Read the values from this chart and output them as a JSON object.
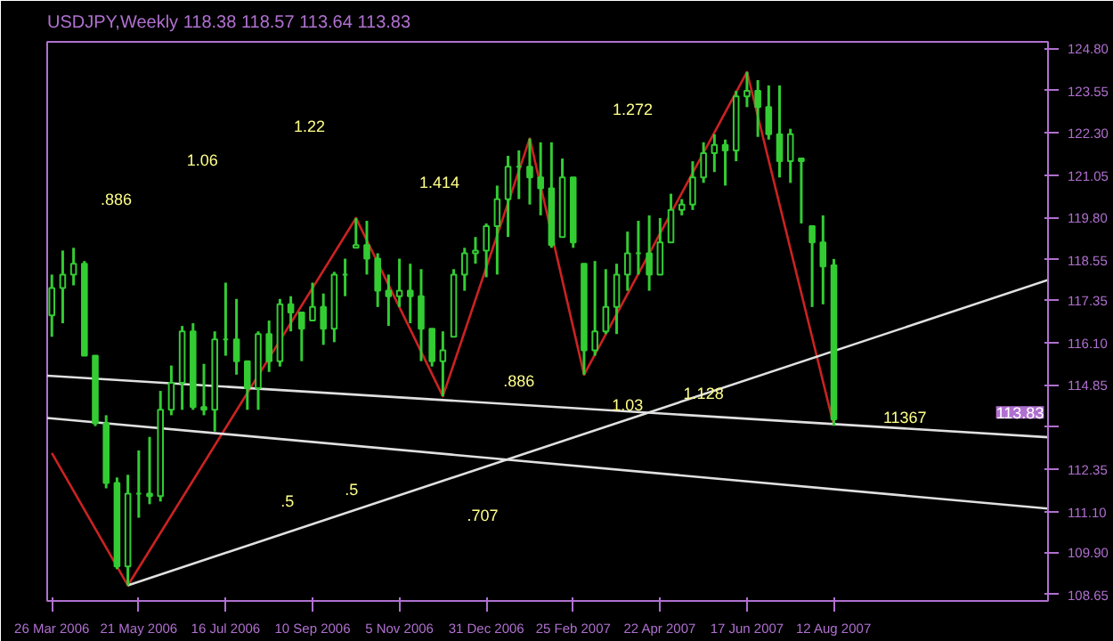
{
  "chart_data": {
    "type": "candlestick",
    "title": "USDJPY,Weekly  118.38 118.57 113.64 113.83",
    "color": "#33cc33",
    "x": [
      "2006-03-26",
      "2006-04-02",
      "2006-04-09",
      "2006-04-16",
      "2006-04-23",
      "2006-04-30",
      "2006-05-07",
      "2006-05-14",
      "2006-05-21",
      "2006-05-28",
      "2006-06-04",
      "2006-06-11",
      "2006-06-18",
      "2006-06-25",
      "2006-07-02",
      "2006-07-09",
      "2006-07-16",
      "2006-07-23",
      "2006-07-30",
      "2006-08-06",
      "2006-08-13",
      "2006-08-20",
      "2006-08-27",
      "2006-09-03",
      "2006-09-10",
      "2006-09-17",
      "2006-09-24",
      "2006-10-01",
      "2006-10-08",
      "2006-10-15",
      "2006-10-22",
      "2006-10-29",
      "2006-11-05",
      "2006-11-12",
      "2006-11-19",
      "2006-11-26",
      "2006-12-03",
      "2006-12-10",
      "2006-12-17",
      "2006-12-24",
      "2006-12-31",
      "2007-01-07",
      "2007-01-14",
      "2007-01-21",
      "2007-01-28",
      "2007-02-04",
      "2007-02-11",
      "2007-02-18",
      "2007-02-25",
      "2007-03-04",
      "2007-03-11",
      "2007-03-18",
      "2007-03-25",
      "2007-04-01",
      "2007-04-08",
      "2007-04-15",
      "2007-04-22",
      "2007-04-29",
      "2007-05-06",
      "2007-05-13",
      "2007-05-20",
      "2007-05-27",
      "2007-06-03",
      "2007-06-10",
      "2007-06-17",
      "2007-06-24",
      "2007-07-01",
      "2007-07-08",
      "2007-07-15",
      "2007-07-22",
      "2007-07-29",
      "2007-08-05",
      "2007-08-12"
    ],
    "ohlc": [
      [
        116.9,
        118.11,
        116.27,
        117.71
      ],
      [
        117.71,
        118.82,
        116.67,
        118.11
      ],
      [
        118.11,
        118.9,
        117.79,
        118.43
      ],
      [
        118.43,
        118.51,
        115.71,
        115.71
      ],
      [
        115.71,
        115.71,
        113.63,
        113.71
      ],
      [
        113.71,
        113.95,
        111.79,
        111.95
      ],
      [
        111.95,
        112.11,
        109.4,
        109.48
      ],
      [
        109.48,
        112.19,
        108.92,
        111.63
      ],
      [
        111.63,
        112.91,
        110.92,
        111.63
      ],
      [
        111.63,
        113.31,
        111.32,
        111.56
      ],
      [
        111.56,
        114.67,
        111.4,
        114.11
      ],
      [
        114.11,
        115.42,
        113.95,
        114.91
      ],
      [
        114.91,
        116.59,
        114.11,
        116.43
      ],
      [
        116.43,
        116.67,
        114.11,
        114.19
      ],
      [
        114.19,
        115.47,
        113.95,
        114.11
      ],
      [
        114.11,
        116.43,
        113.47,
        116.19
      ],
      [
        116.19,
        117.87,
        115.71,
        116.19
      ],
      [
        116.19,
        117.39,
        115.15,
        115.55
      ],
      [
        115.55,
        115.55,
        114.11,
        114.75
      ],
      [
        114.75,
        116.43,
        114.11,
        116.35
      ],
      [
        116.35,
        116.75,
        115.23,
        115.55
      ],
      [
        115.55,
        117.39,
        115.39,
        117.23
      ],
      [
        117.23,
        117.47,
        116.43,
        116.99
      ],
      [
        116.99,
        116.99,
        115.55,
        116.51
      ],
      [
        116.75,
        117.87,
        116.75,
        117.15
      ],
      [
        117.15,
        117.55,
        116.03,
        116.51
      ],
      [
        116.51,
        118.19,
        116.11,
        118.11
      ],
      [
        118.11,
        118.58,
        117.47,
        118.11
      ],
      [
        118.9,
        119.78,
        118.9,
        118.98
      ],
      [
        118.98,
        119.7,
        118.11,
        118.58
      ],
      [
        118.58,
        118.74,
        117.15,
        117.63
      ],
      [
        117.63,
        118.11,
        116.59,
        117.47
      ],
      [
        117.47,
        118.58,
        117.15,
        117.63
      ],
      [
        117.63,
        118.43,
        116.67,
        117.47
      ],
      [
        117.47,
        118.27,
        115.55,
        116.51
      ],
      [
        116.51,
        116.51,
        115.39,
        115.55
      ],
      [
        115.55,
        116.43,
        114.51,
        115.87
      ],
      [
        116.27,
        118.27,
        116.27,
        118.11
      ],
      [
        118.11,
        118.9,
        117.63,
        118.74
      ],
      [
        118.74,
        119.22,
        118.43,
        118.82
      ],
      [
        118.82,
        119.62,
        118.03,
        119.54
      ],
      [
        119.54,
        120.74,
        118.11,
        120.34
      ],
      [
        120.34,
        121.62,
        119.22,
        121.3
      ],
      [
        121.3,
        121.78,
        120.34,
        121.3
      ],
      [
        121.3,
        122.13,
        120.18,
        120.98
      ],
      [
        120.98,
        122.02,
        119.86,
        120.66
      ],
      [
        120.66,
        122.02,
        118.9,
        118.98
      ],
      [
        119.22,
        121.54,
        119.22,
        120.98
      ],
      [
        120.98,
        120.98,
        118.9,
        119.06
      ],
      [
        118.43,
        118.43,
        115.15,
        115.87
      ],
      [
        115.87,
        118.51,
        115.71,
        116.43
      ],
      [
        116.43,
        118.27,
        116.35,
        117.15
      ],
      [
        117.15,
        118.43,
        116.35,
        118.11
      ],
      [
        118.11,
        119.38,
        117.63,
        118.74
      ],
      [
        118.74,
        119.7,
        118.11,
        118.74
      ],
      [
        118.74,
        119.86,
        117.63,
        118.11
      ],
      [
        118.11,
        119.78,
        118.11,
        119.06
      ],
      [
        119.06,
        120.5,
        119.06,
        120.02
      ],
      [
        120.02,
        120.34,
        119.86,
        120.18
      ],
      [
        120.18,
        121.46,
        120.02,
        120.98
      ],
      [
        120.98,
        122.02,
        120.82,
        121.7
      ],
      [
        121.7,
        122.26,
        121.14,
        121.94
      ],
      [
        121.94,
        122.1,
        120.74,
        121.78
      ],
      [
        121.78,
        123.54,
        121.46,
        123.38
      ],
      [
        123.38,
        124.1,
        123.06,
        123.54
      ],
      [
        123.54,
        123.86,
        122.18,
        123.06
      ],
      [
        123.06,
        123.7,
        122.1,
        122.26
      ],
      [
        122.26,
        123.7,
        120.98,
        121.46
      ],
      [
        121.46,
        122.42,
        120.82,
        122.26
      ],
      [
        121.54,
        121.54,
        119.62,
        121.46
      ],
      [
        119.54,
        119.54,
        117.15,
        119.06
      ],
      [
        119.06,
        119.86,
        117.23,
        118.35
      ],
      [
        118.38,
        118.57,
        113.64,
        113.83
      ]
    ],
    "series": [
      {
        "type": "line",
        "color": "#cc2222",
        "x": [
          "2006-03-26",
          "2006-05-14",
          "2006-10-08",
          "2006-12-03",
          "2007-01-28",
          "2007-03-04",
          "2007-06-17",
          "2007-08-12"
        ],
        "values": [
          112.83,
          108.92,
          119.78,
          114.51,
          122.13,
          115.15,
          124.1,
          113.64
        ]
      },
      {
        "type": "line",
        "color": "#e0e0e0",
        "x": [
          "2006-03-23",
          "2007-12-28"
        ],
        "values": [
          115.12,
          113.3
        ]
      },
      {
        "type": "line",
        "color": "#e0e0e0",
        "x": [
          "2006-03-23",
          "2007-12-28"
        ],
        "values": [
          113.87,
          111.19
        ]
      },
      {
        "type": "line",
        "color": "#e0e0e0",
        "x": [
          "2006-05-14",
          "2007-12-28"
        ],
        "values": [
          108.92,
          117.95
        ]
      }
    ],
    "annotations": [
      ".886",
      "1.06",
      "1.22",
      "1.414",
      "1.272",
      {
        "text": ".886",
        "x": "2007-01-21",
        "y": 114.54
      },
      {
        "text": "1.03",
        "x": "2007-04-01",
        "y": 113.82
      },
      {
        "text": "1.128",
        "x": "2007-05-20",
        "y": 114.16
      },
      ".5",
      ".5",
      ".707",
      "11367",
      "113.83"
    ],
    "xlim": [
      "2006-03-23",
      "2007-12-28"
    ],
    "xticks": [
      {
        "value": "2006-03-26",
        "label": "26 Mar 2006"
      },
      {
        "value": "2006-05-21",
        "label": "21 May 2006"
      },
      {
        "value": "2006-07-16",
        "label": "16 Jul 2006"
      },
      {
        "value": "2006-09-10",
        "label": "10 Sep 2006"
      },
      {
        "value": "2006-11-05",
        "label": "5 Nov 2006"
      },
      {
        "value": "2006-12-31",
        "label": "31 Dec 2006"
      },
      {
        "value": "2007-02-25",
        "label": "25 Feb 2007"
      },
      {
        "value": "2007-04-22",
        "label": "22 Apr 2007"
      },
      {
        "value": "2007-06-17",
        "label": "17 Jun 2007"
      },
      {
        "value": "2007-08-12",
        "label": "12 Aug 2007"
      }
    ],
    "ylim": [
      108.46,
      124.99
    ],
    "yticks": [
      {
        "value": 124.8,
        "label": "124.80"
      },
      {
        "value": 123.55,
        "label": "123.55"
      },
      {
        "value": 122.3,
        "label": "122.30"
      },
      {
        "value": 121.05,
        "label": "121.05"
      },
      {
        "value": 119.8,
        "label": "119.80"
      },
      {
        "value": 118.55,
        "label": "118.55"
      },
      {
        "value": 117.35,
        "label": "117.35"
      },
      {
        "value": 116.1,
        "label": "116.10"
      },
      {
        "value": 114.85,
        "label": "114.85"
      },
      {
        "value": 113.6,
        "label": null
      },
      {
        "value": 112.35,
        "label": "112.35"
      },
      {
        "value": 111.1,
        "label": "111.10"
      },
      {
        "value": 109.9,
        "label": "109.90"
      },
      {
        "value": 108.65,
        "label": "108.65"
      }
    ]
  }
}
